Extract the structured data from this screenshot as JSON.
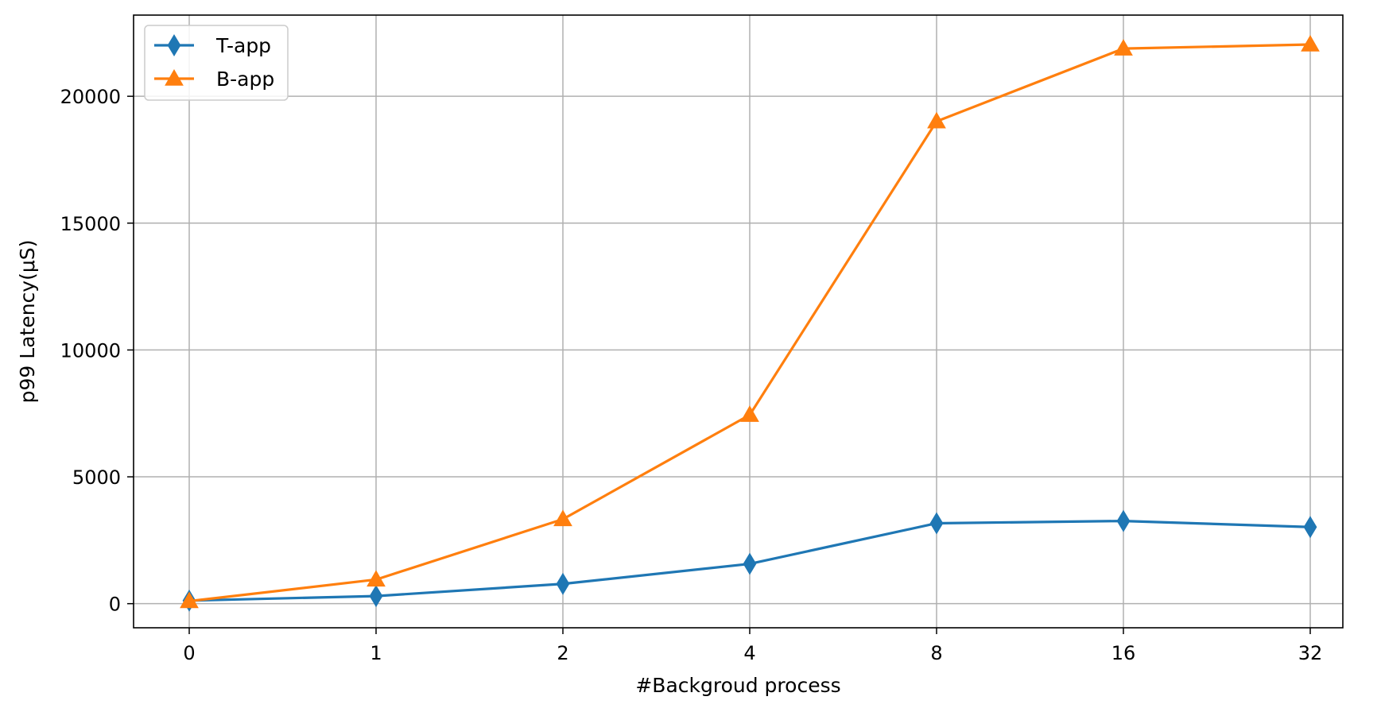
{
  "chart_data": {
    "type": "line",
    "categories": [
      "0",
      "1",
      "2",
      "4",
      "8",
      "16",
      "32"
    ],
    "series": [
      {
        "name": "T-app",
        "values": [
          120,
          300,
          780,
          1570,
          3170,
          3260,
          3020
        ],
        "color": "#1f77b4",
        "marker": "diamond"
      },
      {
        "name": "B-app",
        "values": [
          100,
          950,
          3330,
          7440,
          19010,
          21880,
          22040
        ],
        "color": "#ff7f0e",
        "marker": "triangle"
      }
    ],
    "title": "",
    "xlabel": "#Backgroud process",
    "ylabel": "p99 Latency(μS)",
    "ylim": [
      -950,
      23200
    ],
    "yticks": [
      0,
      5000,
      10000,
      15000,
      20000
    ],
    "grid": true,
    "legend_position": "top-left"
  }
}
